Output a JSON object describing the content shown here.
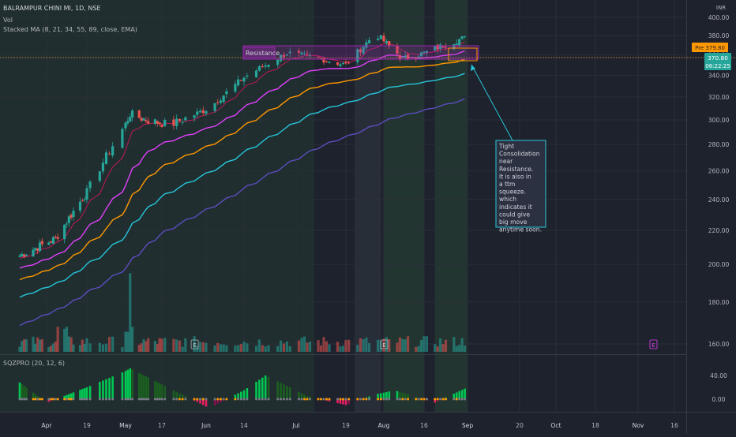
{
  "header": {
    "symbol": "BALRAMPUR CHINI MI, 1D, NSE",
    "vol_label": "Vol",
    "ma_label": "Stacked MA (8, 21, 34, 55, 89, close, EMA)",
    "sqz_label": "SQZPRO (20, 12, 6)"
  },
  "price_axis": {
    "currency": "INR",
    "last_price_tag": "Pre 379.80",
    "close_tag": "370.80",
    "countdown_tag": "06:22:25"
  },
  "annotations": {
    "resistance_label": "Resistance",
    "note_text": "Tight Consolidation near Resistance. It is also in a ttm squeeze. which indicates it could give big move anytime soon.",
    "earnings_marker": "E"
  },
  "colors": {
    "background": "#1e222d",
    "up_candle": "#26a69a",
    "down_candle": "#ef5350",
    "ma8": "#c2185b",
    "ma21": "#e040fb",
    "ma34": "#ff9800",
    "ma55": "#26c6da",
    "ma89": "#5c4dbf",
    "resistance_box": "#9c27b0",
    "note_border": "#26c6da"
  },
  "chart_data": [
    {
      "type": "candlestick",
      "title": "BALRAMPUR CHINI MI, 1D, NSE",
      "yunit": "INR",
      "y_scale": "log",
      "ylim": [
        155,
        405
      ],
      "yticks": [
        160,
        180,
        200,
        220,
        240,
        260,
        280,
        300,
        320,
        340,
        360,
        380,
        400
      ],
      "x_ticks": [
        "Apr",
        "19",
        "May",
        "17",
        "Jun",
        "14",
        "Jul",
        "19",
        "Aug",
        "16",
        "Sep",
        "20",
        "Oct",
        "18",
        "Nov",
        "16"
      ],
      "grid": true,
      "close_series_keypoints": [
        {
          "x": "Mar 20",
          "close": 205
        },
        {
          "x": "Apr 5",
          "close": 215
        },
        {
          "x": "Apr 19",
          "close": 245
        },
        {
          "x": "May 3",
          "close": 305
        },
        {
          "x": "May 10",
          "close": 300
        },
        {
          "x": "May 20",
          "close": 296
        },
        {
          "x": "Jun 2",
          "close": 310
        },
        {
          "x": "Jun 14",
          "close": 338
        },
        {
          "x": "Jun 28",
          "close": 362
        },
        {
          "x": "Jul 10",
          "close": 356
        },
        {
          "x": "Jul 19",
          "close": 350
        },
        {
          "x": "Jul 29",
          "close": 382
        },
        {
          "x": "Aug 8",
          "close": 356
        },
        {
          "x": "Aug 16",
          "close": 362
        },
        {
          "x": "Aug 30",
          "close": 377
        },
        {
          "x": "Sep 1",
          "close": 377
        }
      ],
      "resistance_zone": [
        375,
        385
      ],
      "moving_averages": [
        {
          "name": "EMA 8",
          "end_value": 369
        },
        {
          "name": "EMA 21",
          "end_value": 364
        },
        {
          "name": "EMA 34",
          "end_value": 358
        },
        {
          "name": "EMA 55",
          "end_value": 348
        },
        {
          "name": "EMA 89",
          "end_value": 328
        }
      ],
      "shaded_periods": [
        "Jul 22 – Jul 31",
        "Aug 1 – Aug 16",
        "Aug 20 – Sep 1"
      ]
    },
    {
      "type": "bar",
      "title": "Vol",
      "note": "relative volume bars, mostly low with spikes in mid-April and early May",
      "spikes": [
        "Apr 8",
        "May 3"
      ]
    },
    {
      "type": "bar",
      "title": "SQZPRO (20, 12, 6)",
      "yticks": [
        40.0,
        0.0
      ],
      "ylim": [
        -18,
        58
      ],
      "momentum_keypoints": [
        {
          "x": "Mar 20",
          "value": 28
        },
        {
          "x": "Apr 1",
          "value": -6
        },
        {
          "x": "Apr 19",
          "value": 20
        },
        {
          "x": "May 3",
          "value": 52
        },
        {
          "x": "May 17",
          "value": 25
        },
        {
          "x": "Jun 2",
          "value": -15
        },
        {
          "x": "Jun 14",
          "value": 15
        },
        {
          "x": "Jun 21",
          "value": 40
        },
        {
          "x": "Jul 5",
          "value": 5
        },
        {
          "x": "Jul 19",
          "value": -10
        },
        {
          "x": "Jul 29",
          "value": 8
        },
        {
          "x": "Aug 5",
          "value": 15
        },
        {
          "x": "Aug 20",
          "value": -6
        },
        {
          "x": "Sep 1",
          "value": 20
        }
      ]
    }
  ]
}
